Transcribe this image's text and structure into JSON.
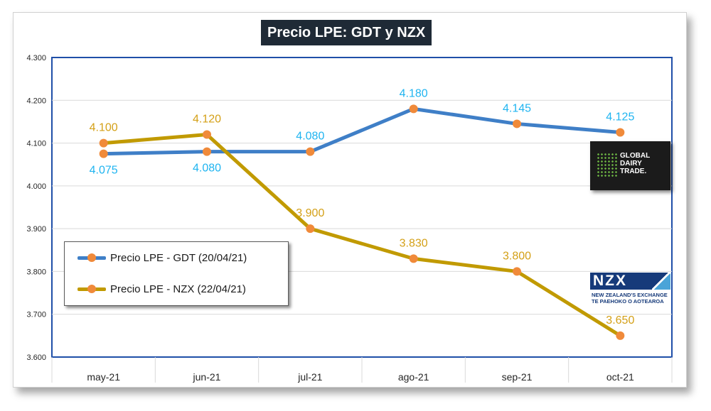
{
  "chart_data": {
    "type": "line",
    "title": "Precio LPE: GDT y NZX",
    "categories": [
      "may-21",
      "jun-21",
      "jul-21",
      "ago-21",
      "sep-21",
      "oct-21"
    ],
    "y_ticks": [
      "4.300",
      "4.200",
      "4.100",
      "4.000",
      "3.900",
      "3.800",
      "3.700",
      "3.600"
    ],
    "ylim": [
      3600,
      4300
    ],
    "grid": true,
    "legend_position": "bottom-left",
    "series": [
      {
        "name": "Precio LPE - GDT (20/04/21)",
        "color": "#3f7fc7",
        "label_color": "#1fb4f0",
        "values": [
          4075,
          4080,
          4080,
          4180,
          4145,
          4125
        ],
        "labels": [
          "4.075",
          "4.080",
          "4.080",
          "4.180",
          "4.145",
          "4.125"
        ],
        "label_side": [
          "below",
          "below",
          "above",
          "above",
          "above",
          "above"
        ]
      },
      {
        "name": "Precio LPE - NZX (22/04/21)",
        "color": "#c19a00",
        "label_color": "#d4a017",
        "values": [
          4100,
          4120,
          3900,
          3830,
          3800,
          3650
        ],
        "labels": [
          "4.100",
          "4.120",
          "3.900",
          "3.830",
          "3.800",
          "3.650"
        ],
        "label_side": [
          "above",
          "above",
          "above",
          "above",
          "above",
          "above"
        ]
      }
    ],
    "marker_color": "#f08a3a"
  },
  "logos": {
    "gdt": {
      "line1": "GLOBAL",
      "line2": "DAIRY",
      "line3": "TRADE."
    },
    "nzx": {
      "mark": "NZX",
      "line1": "NEW ZEALAND'S EXCHANGE",
      "line2": "TE PAEHOKO O AOTEAROA"
    }
  }
}
